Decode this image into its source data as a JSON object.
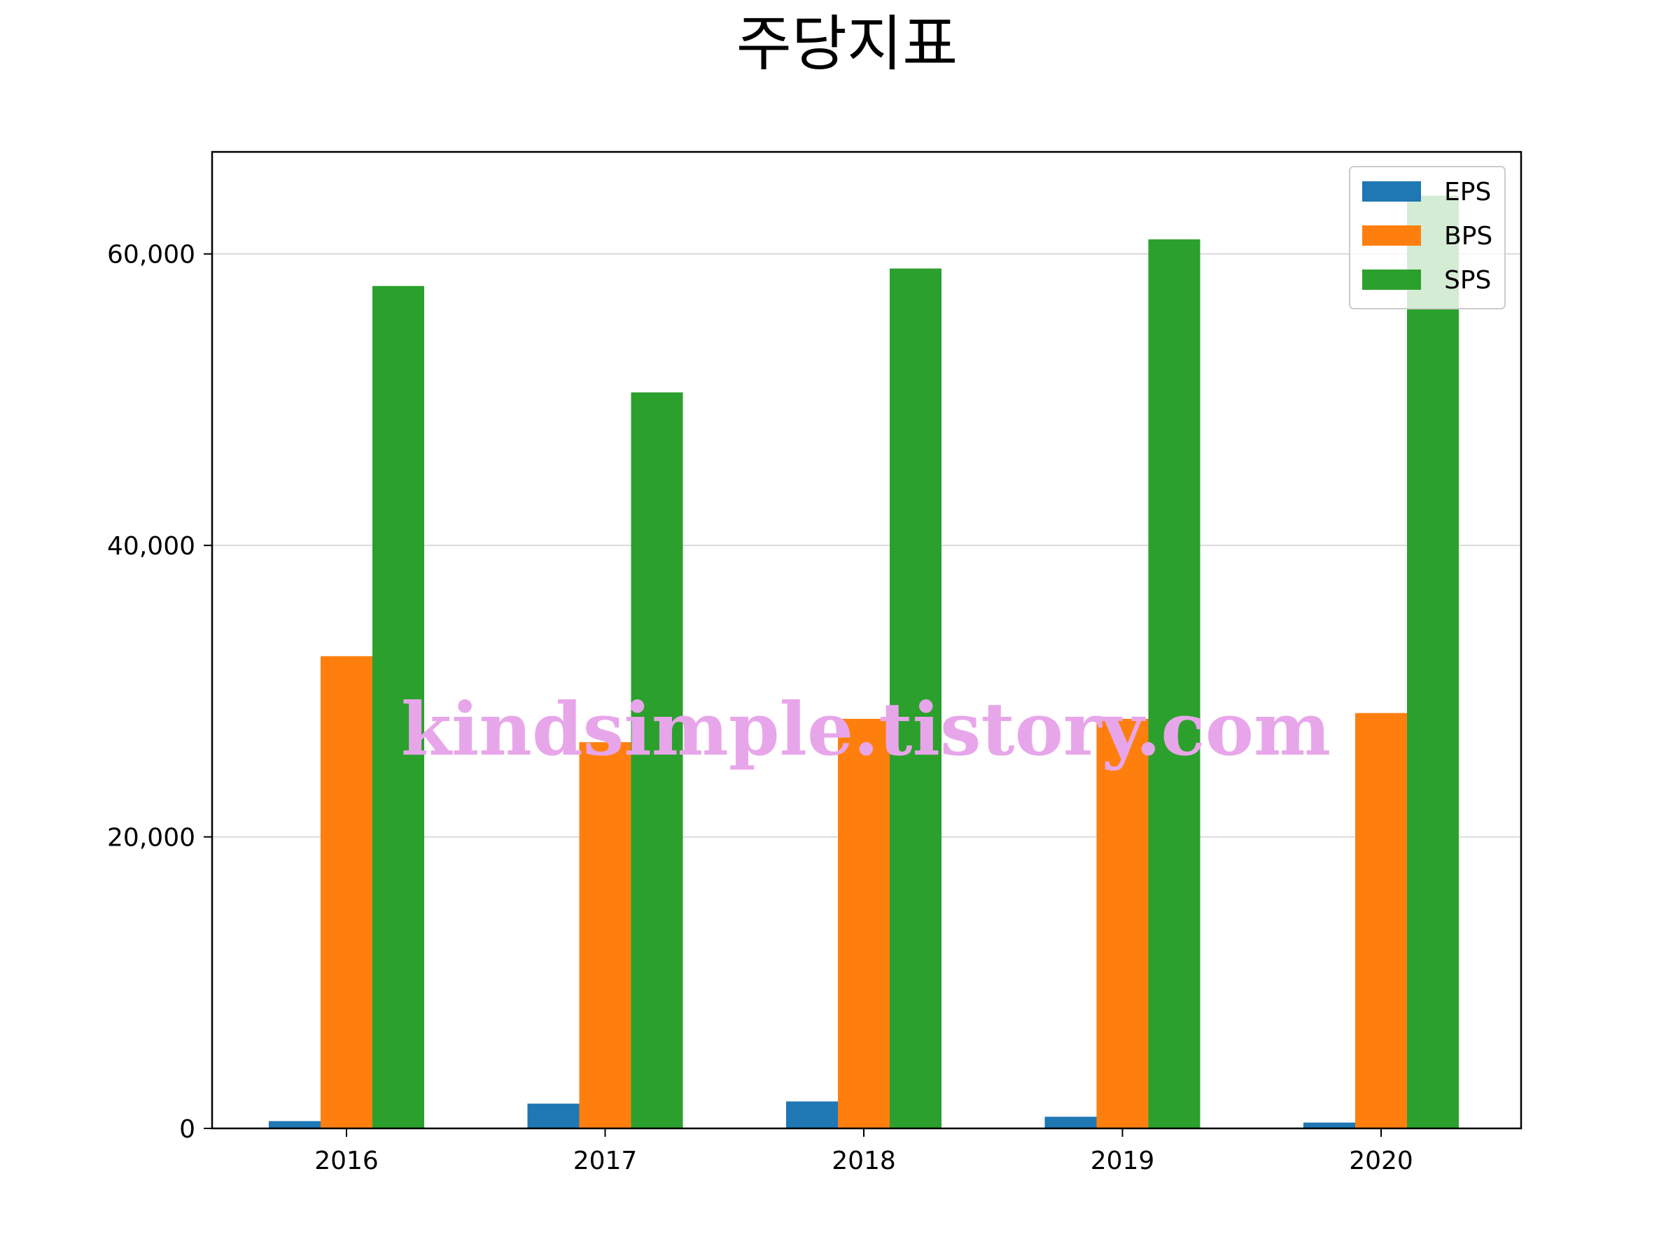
{
  "chart_data": {
    "type": "bar",
    "title": "주당지표",
    "xlabel": "",
    "ylabel": "",
    "categories": [
      "2016",
      "2017",
      "2018",
      "2019",
      "2020"
    ],
    "series": [
      {
        "name": "EPS",
        "color": "#1f77b4",
        "values": [
          500,
          1700,
          1850,
          800,
          400
        ]
      },
      {
        "name": "BPS",
        "color": "#ff7f0e",
        "values": [
          32400,
          26500,
          28100,
          28100,
          28500
        ]
      },
      {
        "name": "SPS",
        "color": "#2ca02c",
        "values": [
          57800,
          50500,
          59000,
          61000,
          64000
        ]
      }
    ],
    "ylim": [
      0,
      67000
    ],
    "yticks": [
      0,
      20000,
      40000,
      60000
    ],
    "ytick_labels": [
      "0",
      "20,000",
      "40,000",
      "60,000"
    ],
    "grid": "horizontal",
    "legend_position": "top-right"
  },
  "watermark": "kindsimple.tistory.com"
}
